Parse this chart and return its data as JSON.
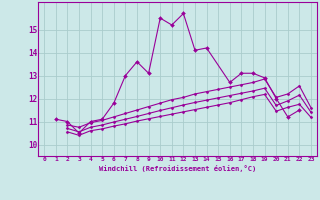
{
  "xlabel": "Windchill (Refroidissement éolien,°C)",
  "xlim": [
    -0.5,
    23.5
  ],
  "ylim": [
    9.5,
    16.2
  ],
  "yticks": [
    10,
    11,
    12,
    13,
    14,
    15
  ],
  "xticks": [
    0,
    1,
    2,
    3,
    4,
    5,
    6,
    7,
    8,
    9,
    10,
    11,
    12,
    13,
    14,
    15,
    16,
    17,
    18,
    19,
    20,
    21,
    22,
    23
  ],
  "bg_color": "#cce8e8",
  "line_color": "#990099",
  "grid_color": "#b8d8d8",
  "series": {
    "main": {
      "x": [
        1,
        2,
        3,
        4,
        5,
        6,
        7,
        8,
        9,
        10,
        11,
        12,
        13,
        14,
        16,
        17,
        18,
        19,
        20,
        21,
        22
      ],
      "y": [
        11.1,
        11.0,
        10.5,
        11.0,
        11.1,
        11.8,
        13.0,
        13.6,
        13.1,
        15.5,
        15.2,
        15.7,
        14.1,
        14.2,
        12.7,
        13.1,
        13.1,
        12.9,
        12.0,
        11.2,
        11.5
      ]
    },
    "upper": {
      "x": [
        2,
        3,
        4,
        5,
        6,
        7,
        8,
        9,
        10,
        11,
        12,
        13,
        14,
        15,
        16,
        17,
        18,
        19,
        20,
        21,
        22,
        23
      ],
      "y": [
        10.85,
        10.75,
        10.95,
        11.05,
        11.2,
        11.35,
        11.5,
        11.65,
        11.8,
        11.95,
        12.05,
        12.2,
        12.3,
        12.4,
        12.5,
        12.6,
        12.7,
        12.85,
        12.05,
        12.2,
        12.55,
        11.6
      ]
    },
    "middle": {
      "x": [
        2,
        3,
        4,
        5,
        6,
        7,
        8,
        9,
        10,
        11,
        12,
        13,
        14,
        15,
        16,
        17,
        18,
        19,
        20,
        21,
        22,
        23
      ],
      "y": [
        10.7,
        10.55,
        10.75,
        10.85,
        10.98,
        11.1,
        11.22,
        11.35,
        11.48,
        11.6,
        11.72,
        11.83,
        11.93,
        12.03,
        12.13,
        12.23,
        12.33,
        12.45,
        11.7,
        11.9,
        12.15,
        11.4
      ]
    },
    "lower": {
      "x": [
        2,
        3,
        4,
        5,
        6,
        7,
        8,
        9,
        10,
        11,
        12,
        13,
        14,
        15,
        16,
        17,
        18,
        19,
        20,
        21,
        22,
        23
      ],
      "y": [
        10.55,
        10.4,
        10.6,
        10.68,
        10.8,
        10.9,
        11.02,
        11.12,
        11.22,
        11.32,
        11.42,
        11.52,
        11.62,
        11.72,
        11.82,
        11.95,
        12.08,
        12.18,
        11.45,
        11.62,
        11.75,
        11.18
      ]
    }
  }
}
